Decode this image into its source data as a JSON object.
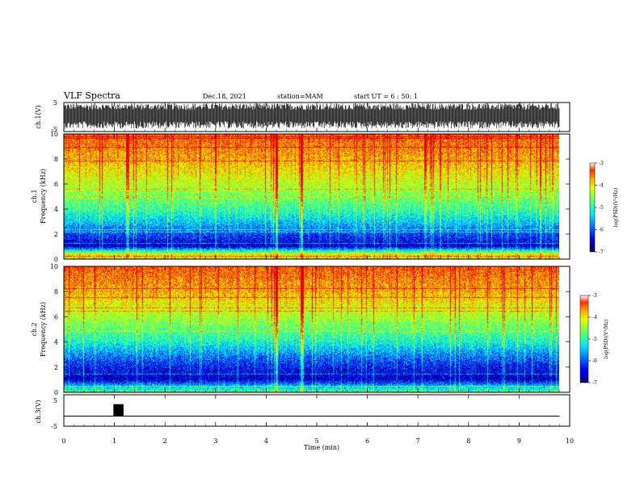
{
  "header": {
    "title": "VLF Spectra",
    "date": "Dec.18, 2021",
    "station": "station=MAM",
    "start": "start UT =  6 : 50: 1"
  },
  "colors": {
    "scale": [
      "#00007f",
      "#0000ff",
      "#0080ff",
      "#00e5ff",
      "#30ff9a",
      "#8cff3a",
      "#e6ff00",
      "#ffaa00",
      "#ff3000",
      "#e00000"
    ],
    "waveform": "#000000",
    "axis": "#000000"
  },
  "chart_data": [
    {
      "type": "line",
      "name_label": "ch.1(V)",
      "ylabel": "ch.1(V)",
      "ylim": [
        -5,
        5
      ],
      "yticks": [
        "5",
        "-5"
      ],
      "description_of_values": "dense noise waveform spanning most of the range",
      "x_range_min": [
        0,
        9.8
      ]
    },
    {
      "type": "heatmap",
      "ylabel_lines": [
        "ch.1",
        "Frequency  (kHz)"
      ],
      "ylim": [
        0,
        10
      ],
      "yticks": [
        "0",
        "2",
        "4",
        "6",
        "8",
        "10"
      ],
      "colorbar": {
        "label": "log(PSD)(V²/Hz)",
        "ticks": [
          "-3",
          "-4",
          "-5",
          "-6",
          "-7"
        ],
        "range": [
          -7,
          -3
        ]
      },
      "x_range_min": [
        0,
        9.8
      ],
      "profile_by_freq_khz": [
        {
          "f": 0.3,
          "level": -4.2
        },
        {
          "f": 1.0,
          "level": -6.8
        },
        {
          "f": 2.0,
          "level": -6.3
        },
        {
          "f": 3.0,
          "level": -5.7
        },
        {
          "f": 4.0,
          "level": -5.2
        },
        {
          "f": 6.0,
          "level": -4.5
        },
        {
          "f": 8.0,
          "level": -3.9
        },
        {
          "f": 10.0,
          "level": -3.5
        }
      ],
      "highlights_min": [
        4.2,
        4.7
      ]
    },
    {
      "type": "heatmap",
      "ylabel_lines": [
        "ch.2",
        "Frequency  (kHz)"
      ],
      "ylim": [
        0,
        10
      ],
      "yticks": [
        "0",
        "2",
        "4",
        "6",
        "8",
        "10"
      ],
      "colorbar": {
        "label": "log(PSD)(V²/Hz)",
        "ticks": [
          "-3",
          "-4",
          "-5",
          "-6",
          "-7"
        ],
        "range": [
          -7,
          -3
        ]
      },
      "x_range_min": [
        0,
        9.8
      ],
      "profile_by_freq_khz": [
        {
          "f": 0.3,
          "level": -5.5
        },
        {
          "f": 1.0,
          "level": -6.8
        },
        {
          "f": 2.0,
          "level": -6.5
        },
        {
          "f": 3.0,
          "level": -6.0
        },
        {
          "f": 4.0,
          "level": -5.4
        },
        {
          "f": 6.0,
          "level": -4.6
        },
        {
          "f": 8.0,
          "level": -3.9
        },
        {
          "f": 10.0,
          "level": -3.5
        }
      ],
      "highlights_min": [
        4.2,
        4.7
      ]
    },
    {
      "type": "line",
      "ylabel": "ch.3(V)",
      "ylim": [
        -5,
        5
      ],
      "yticks": [
        "5",
        "-5"
      ],
      "baseline_v": -1.8,
      "pulse": {
        "start_min": 0.98,
        "end_min": 1.18,
        "top_v": 2.0
      },
      "x_range_min": [
        0,
        9.8
      ]
    }
  ],
  "xaxis": {
    "xlabel": "Time  (min)",
    "xlim": [
      0,
      10
    ],
    "ticks": [
      "0",
      "1",
      "2",
      "3",
      "4",
      "5",
      "6",
      "7",
      "8",
      "9",
      "10"
    ]
  }
}
